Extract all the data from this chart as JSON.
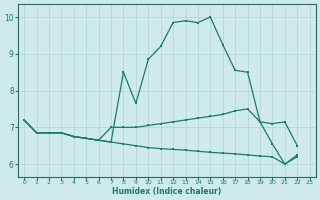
{
  "xlabel": "Humidex (Indice chaleur)",
  "bg_color": "#ceeaea",
  "grid_color": "#afd4d4",
  "line_color": "#1a7a6e",
  "spine_color": "#2a6a60",
  "xlim": [
    -0.5,
    23.5
  ],
  "ylim": [
    5.65,
    10.35
  ],
  "xticks": [
    0,
    1,
    2,
    3,
    4,
    5,
    6,
    7,
    8,
    9,
    10,
    11,
    12,
    13,
    14,
    15,
    16,
    17,
    18,
    19,
    20,
    21,
    22,
    23
  ],
  "yticks": [
    6,
    7,
    8,
    9,
    10
  ],
  "s1": [
    7.2,
    6.85,
    6.85,
    6.85,
    6.75,
    6.7,
    6.65,
    6.6,
    8.5,
    7.65,
    8.85,
    9.2,
    9.85,
    9.9,
    9.85,
    10.0,
    9.25,
    8.55,
    null,
    null,
    null,
    null,
    null,
    null
  ],
  "s2": [
    7.2,
    6.85,
    6.85,
    6.85,
    6.75,
    6.7,
    6.65,
    7.0,
    7.0,
    7.0,
    7.05,
    7.1,
    7.15,
    7.2,
    7.25,
    7.3,
    7.35,
    7.45,
    7.5,
    7.15,
    7.1,
    7.15,
    6.5,
    null
  ],
  "s3": [
    7.2,
    6.85,
    6.85,
    6.85,
    6.75,
    6.7,
    6.65,
    6.6,
    6.55,
    6.5,
    6.45,
    6.42,
    6.4,
    6.38,
    6.35,
    6.32,
    6.3,
    6.28,
    6.25,
    6.22,
    6.2,
    6.0,
    6.25,
    null
  ],
  "s1_full": [
    7.2,
    6.85,
    6.85,
    6.85,
    6.75,
    6.7,
    6.65,
    6.6,
    8.5,
    7.65,
    8.85,
    9.2,
    9.85,
    9.9,
    9.85,
    10.0,
    9.25,
    8.55,
    8.5,
    7.15,
    6.55,
    6.0,
    6.2,
    null
  ]
}
